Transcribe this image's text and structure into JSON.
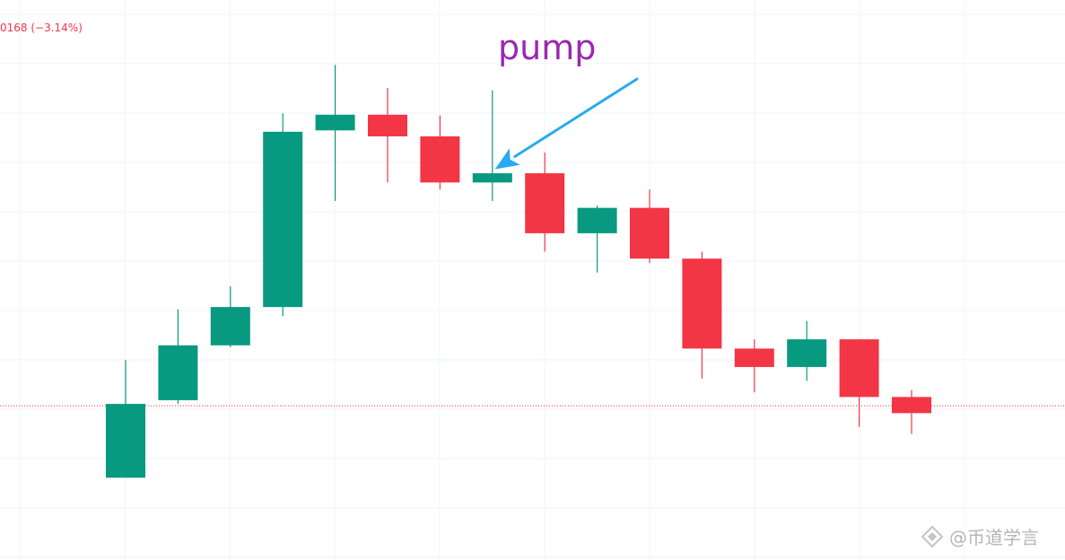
{
  "header": {
    "change_text": "0168 (−3.14%)"
  },
  "annotation": {
    "text": "pump"
  },
  "watermark": {
    "text": "@币道学言",
    "icon": "diamond-logo-icon"
  },
  "colors": {
    "up": "#089981",
    "down": "#f23645",
    "arrow": "#29aaef",
    "annotation": "#9c27b0",
    "grid": "#f0f3fa",
    "price_line": "#f23645"
  },
  "chart_data": {
    "type": "candlestick",
    "title": "",
    "xlabel": "",
    "ylabel": "",
    "ylim": [
      0,
      100
    ],
    "grid": true,
    "current_price": 24.1,
    "annotation": {
      "text": "pump",
      "points_to_candle": 8
    },
    "candles": [
      {
        "open": 8.5,
        "high": 34.0,
        "low": 8.5,
        "close": 24.5
      },
      {
        "open": 25.3,
        "high": 45.0,
        "low": 24.5,
        "close": 37.2
      },
      {
        "open": 37.2,
        "high": 50.0,
        "low": 36.8,
        "close": 45.5
      },
      {
        "open": 45.5,
        "high": 87.5,
        "low": 43.5,
        "close": 83.5
      },
      {
        "open": 83.8,
        "high": 98.0,
        "low": 68.5,
        "close": 87.2
      },
      {
        "open": 87.2,
        "high": 93.0,
        "low": 72.5,
        "close": 82.5
      },
      {
        "open": 82.5,
        "high": 87.0,
        "low": 71.0,
        "close": 72.5
      },
      {
        "open": 72.5,
        "high": 92.5,
        "low": 68.5,
        "close": 74.5
      },
      {
        "open": 74.5,
        "high": 79.0,
        "low": 57.5,
        "close": 61.5
      },
      {
        "open": 61.5,
        "high": 67.5,
        "low": 53.0,
        "close": 67.0
      },
      {
        "open": 67.0,
        "high": 71.0,
        "low": 55.0,
        "close": 56.0
      },
      {
        "open": 56.0,
        "high": 57.5,
        "low": 30.0,
        "close": 36.5
      },
      {
        "open": 36.5,
        "high": 38.5,
        "low": 27.0,
        "close": 32.5
      },
      {
        "open": 32.5,
        "high": 42.5,
        "low": 29.5,
        "close": 38.5
      },
      {
        "open": 38.5,
        "high": 38.5,
        "low": 19.5,
        "close": 26.0
      },
      {
        "open": 26.0,
        "high": 27.5,
        "low": 18.0,
        "close": 22.5
      }
    ]
  }
}
